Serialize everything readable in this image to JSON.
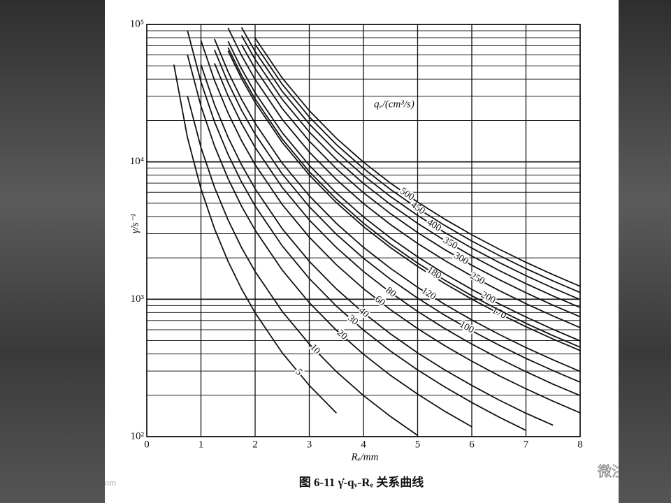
{
  "chart_data": {
    "type": "line",
    "x_label": "Rₑ/mm",
    "y_label": "γ̇/s⁻¹",
    "legend_title": "qᵥ/(cm³/s)",
    "caption": "图 6-11   γ̇-qᵥ-Rₑ 关系曲线",
    "log_y": true,
    "grid": true,
    "xlim": [
      0,
      8
    ],
    "xticks": [
      0,
      1,
      2,
      3,
      4,
      5,
      6,
      7,
      8
    ],
    "ylim": [
      100,
      100000
    ],
    "yticks": [
      {
        "value": 100,
        "label": "10²"
      },
      {
        "value": 1000,
        "label": "10³"
      },
      {
        "value": 10000,
        "label": "10⁴"
      },
      {
        "value": 100000,
        "label": "10⁵"
      }
    ],
    "y_minor_grid": [
      200,
      300,
      400,
      500,
      600,
      700,
      800,
      900,
      2000,
      3000,
      4000,
      5000,
      6000,
      7000,
      8000,
      9000,
      20000,
      30000,
      40000,
      50000,
      60000,
      70000,
      80000,
      90000
    ],
    "x": [
      0.5,
      0.75,
      1,
      1.25,
      1.5,
      1.75,
      2,
      2.5,
      3,
      3.5,
      4,
      4.5,
      5,
      5.5,
      6,
      6.5,
      7,
      7.5,
      8
    ],
    "series": [
      {
        "name": "5",
        "color": "#111111",
        "values": [
          50930,
          15090,
          6366,
          3260,
          1886,
          1188,
          796,
          407,
          236,
          148.5,
          null,
          null,
          null,
          null,
          null,
          null,
          null,
          null,
          null
        ]
      },
      {
        "name": "10",
        "color": "#111111",
        "values": [
          null,
          30180,
          12732,
          6519,
          3772,
          2376,
          1592,
          815,
          472,
          297,
          199,
          140,
          102,
          null,
          null,
          null,
          null,
          null,
          null
        ]
      },
      {
        "name": "20",
        "color": "#111111",
        "values": [
          null,
          60360,
          25465,
          13038,
          7545,
          4752,
          3183,
          1630,
          943,
          594,
          398,
          279,
          204,
          153,
          118,
          null,
          null,
          null,
          null
        ]
      },
      {
        "name": "30",
        "color": "#111111",
        "values": [
          null,
          90540,
          38197,
          19557,
          11318,
          7128,
          4775,
          2445,
          1415,
          891,
          597,
          419,
          306,
          230,
          177,
          139,
          111,
          null,
          null
        ]
      },
      {
        "name": "40",
        "color": "#111111",
        "values": [
          null,
          null,
          50930,
          26076,
          15090,
          9503,
          6366,
          3259,
          1886,
          1188,
          796,
          559,
          407,
          306,
          236,
          185,
          148,
          121,
          null
        ]
      },
      {
        "name": "60",
        "color": "#111111",
        "values": [
          null,
          null,
          76394,
          39114,
          22635,
          14255,
          9549,
          4889,
          2829,
          1782,
          1194,
          838,
          611,
          459,
          354,
          278,
          223,
          181,
          149
        ]
      },
      {
        "name": "80",
        "color": "#111111",
        "values": [
          null,
          null,
          null,
          52152,
          30180,
          19007,
          12732,
          6519,
          3773,
          2376,
          1592,
          1118,
          815,
          612,
          472,
          371,
          297,
          241,
          199
        ]
      },
      {
        "name": "100",
        "color": "#111111",
        "values": [
          null,
          null,
          null,
          65190,
          37725,
          23758,
          15915,
          8149,
          4716,
          2970,
          1989,
          1397,
          1019,
          765,
          589,
          464,
          371,
          302,
          249
        ]
      },
      {
        "name": "120",
        "color": "#111111",
        "values": [
          null,
          null,
          null,
          78228,
          45271,
          28510,
          19099,
          9778,
          5659,
          3564,
          2387,
          1677,
          1222,
          918,
          707,
          556,
          445,
          362,
          298
        ]
      },
      {
        "name": "170",
        "color": "#111111",
        "values": [
          null,
          null,
          null,
          null,
          64134,
          40390,
          27056,
          13853,
          8017,
          5048,
          3382,
          2375,
          1732,
          1301,
          1002,
          788,
          631,
          513,
          423
        ]
      },
      {
        "name": "180",
        "color": "#111111",
        "values": [
          null,
          null,
          null,
          null,
          67906,
          42766,
          28648,
          14668,
          8488,
          5345,
          3581,
          2515,
          1833,
          1377,
          1061,
          835,
          668,
          543,
          448
        ]
      },
      {
        "name": "200",
        "color": "#111111",
        "values": [
          null,
          null,
          null,
          null,
          75451,
          47518,
          31831,
          16297,
          9431,
          5939,
          3979,
          2794,
          2037,
          1531,
          1179,
          927,
          742,
          604,
          497
        ]
      },
      {
        "name": "250",
        "color": "#111111",
        "values": [
          null,
          null,
          null,
          null,
          94314,
          59397,
          39789,
          20372,
          11789,
          7424,
          4974,
          3493,
          2546,
          1913,
          1474,
          1159,
          928,
          755,
          622
        ]
      },
      {
        "name": "300",
        "color": "#111111",
        "values": [
          null,
          null,
          null,
          null,
          null,
          71276,
          47747,
          24446,
          14147,
          8909,
          5968,
          4192,
          3056,
          2296,
          1768,
          1391,
          1114,
          905,
          746
        ]
      },
      {
        "name": "350",
        "color": "#111111",
        "values": [
          null,
          null,
          null,
          null,
          null,
          83156,
          55704,
          28521,
          16505,
          10394,
          6963,
          4890,
          3565,
          2679,
          2063,
          1623,
          1299,
          1056,
          870
        ]
      },
      {
        "name": "400",
        "color": "#111111",
        "values": [
          null,
          null,
          null,
          null,
          null,
          95035,
          63662,
          32595,
          18863,
          11879,
          7958,
          5589,
          4074,
          3061,
          2358,
          1855,
          1485,
          1207,
          995
        ]
      },
      {
        "name": "450",
        "color": "#111111",
        "values": [
          null,
          null,
          null,
          null,
          null,
          null,
          71620,
          36669,
          21221,
          13363,
          8952,
          6288,
          4584,
          3444,
          2653,
          2086,
          1670,
          1358,
          1119
        ]
      },
      {
        "name": "500",
        "color": "#111111",
        "values": [
          null,
          null,
          null,
          null,
          null,
          null,
          79577,
          40744,
          23579,
          14848,
          9947,
          6986,
          5093,
          3826,
          2947,
          2318,
          1856,
          1509,
          1243
        ]
      }
    ]
  },
  "watermarks": [
    "微注塑",
    "微注塑论坛 www.vzhusu.com"
  ]
}
